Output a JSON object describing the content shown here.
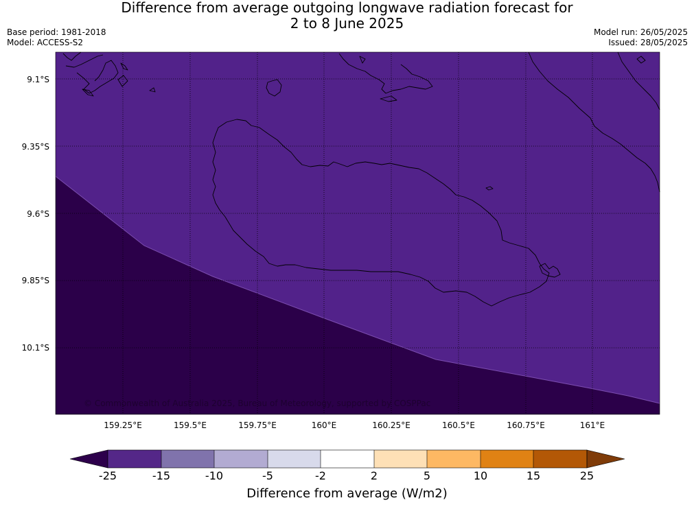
{
  "title": {
    "line1": "Difference from average outgoing longwave radiation forecast for",
    "line2": "2 to 8 June 2025"
  },
  "meta_left": {
    "base_period": "Base period: 1981-2018",
    "model": "Model: ACCESS-S2"
  },
  "meta_right": {
    "model_run": "Model run: 26/05/2025",
    "issued": "Issued: 28/05/2025"
  },
  "map": {
    "y_ticks": [
      "9.1°S",
      "9.35°S",
      "9.6°S",
      "9.85°S",
      "10.1°S"
    ],
    "x_ticks": [
      "159.25°E",
      "159.5°E",
      "159.75°E",
      "160°E",
      "160.25°E",
      "160.5°E",
      "160.75°E",
      "161°E"
    ],
    "copyright": "© Commonwealth of Australia 2025, Bureau of Meteorology, supported by COSPPac",
    "colors": {
      "region_upper": "#52228a",
      "region_lower": "#2b0049",
      "grid": "#000000",
      "coast": "#000000"
    }
  },
  "colorbar": {
    "title": "Difference from average (W/m2)",
    "labels": [
      "-25",
      "-15",
      "-10",
      "-5",
      "-2",
      "2",
      "5",
      "10",
      "15",
      "25"
    ],
    "colors": {
      "under": "#2d004b",
      "bins": [
        "#542788",
        "#8073ac",
        "#b2abd2",
        "#d8daeb",
        "#ffffff",
        "#fee0b6",
        "#fdb863",
        "#e08214",
        "#b35806"
      ],
      "over": "#7f3b08"
    }
  }
}
